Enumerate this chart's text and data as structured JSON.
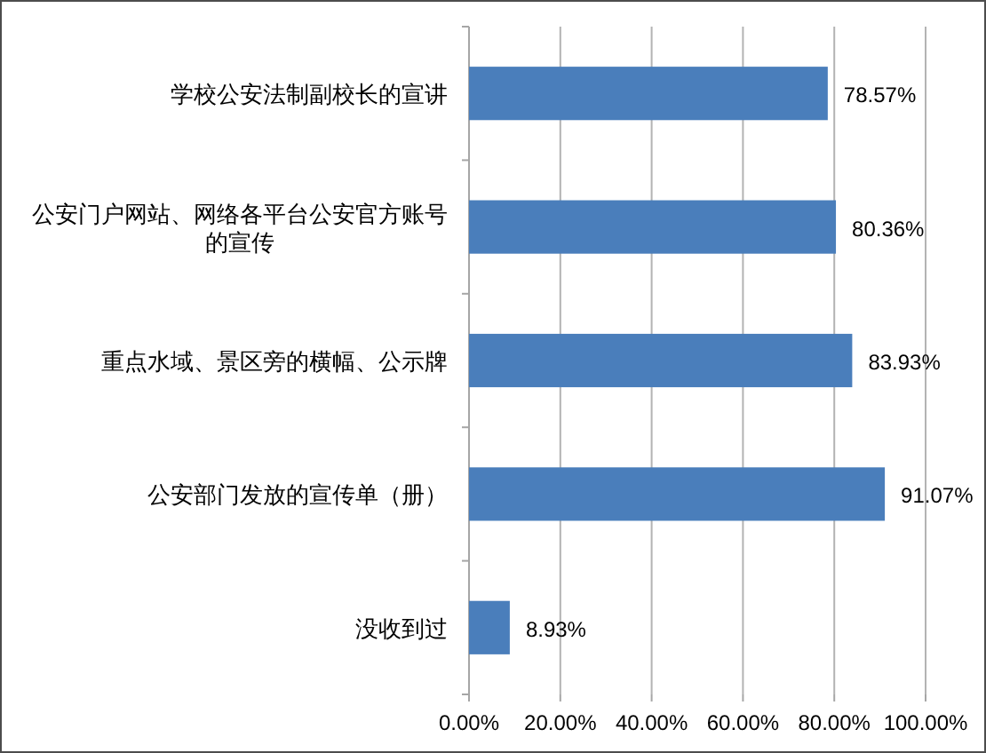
{
  "chart_data": {
    "type": "bar",
    "orientation": "horizontal",
    "categories": [
      "学校公安法制副校长的宣讲",
      "公安门户网站、网络各平台公安官方账号的宣传",
      "重点水域、景区旁的横幅、公示牌",
      "公安部门发放的宣传单（册）",
      "没收到过"
    ],
    "values": [
      78.57,
      80.36,
      83.93,
      91.07,
      8.93
    ],
    "value_labels": [
      "78.57%",
      "80.36%",
      "83.93%",
      "91.07%",
      "8.93%"
    ],
    "color": "#4a7ebb",
    "xlim": [
      0,
      100
    ],
    "xticks": [
      {
        "value": 0,
        "label": "0.00%"
      },
      {
        "value": 20,
        "label": "20.00%"
      },
      {
        "value": 40,
        "label": "40.00%"
      },
      {
        "value": 60,
        "label": "60.00%"
      },
      {
        "value": 80,
        "label": "80.00%"
      },
      {
        "value": 100,
        "label": "100.00%"
      }
    ],
    "grid": "x"
  }
}
